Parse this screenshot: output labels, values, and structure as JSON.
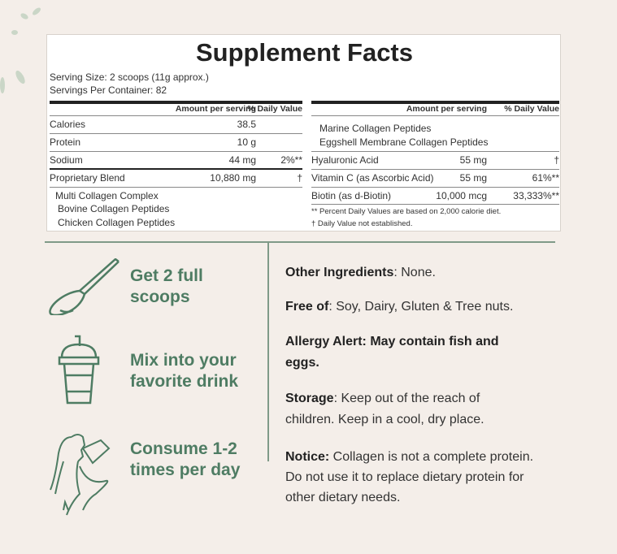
{
  "title": "Supplement Facts",
  "serving_size": "Serving Size: 2 scoops (11g approx.)",
  "servings_per_container": "Servings Per Container: 82",
  "left_table": {
    "headers": [
      "Amount per serving",
      "% Daily Value"
    ],
    "rows": [
      {
        "name": "Calories",
        "amount": "38.5",
        "dv": ""
      },
      {
        "name": "Protein",
        "amount": "10 g",
        "dv": ""
      },
      {
        "name": "Sodium",
        "amount": "44 mg",
        "dv": "2%**"
      },
      {
        "name": "Proprietary Blend",
        "amount": "10,880 mg",
        "dv": "†"
      }
    ],
    "sub_items": [
      "Multi Collagen Complex",
      "Bovine Collagen Peptides",
      "Chicken Collagen Peptides"
    ]
  },
  "right_table": {
    "headers": [
      "Amount per serving",
      "% Daily Value"
    ],
    "sub_items": [
      "Marine Collagen Peptides",
      "Eggshell Membrane Collagen Peptides"
    ],
    "rows": [
      {
        "name": "Hyaluronic Acid",
        "amount": "55 mg",
        "dv": "†"
      },
      {
        "name": "Vitamin C (as Ascorbic Acid)",
        "amount": "55 mg",
        "dv": "61%**"
      },
      {
        "name": "Biotin (as d-Biotin)",
        "amount": "10,000 mcg",
        "dv": "33,333%**"
      }
    ],
    "footnotes": [
      "** Percent Daily Values are based on 2,000 calorie diet.",
      "† Daily Value not established."
    ]
  },
  "steps": [
    {
      "icon": "scoop-icon",
      "line1": "Get 2 full",
      "line2": "scoops"
    },
    {
      "icon": "drink-cup-icon",
      "line1": "Mix into your",
      "line2": "favorite drink"
    },
    {
      "icon": "woman-drinking-icon",
      "line1": "Consume 1-2",
      "line2": "times per day"
    }
  ],
  "info": {
    "other_label": "Other Ingredients",
    "other_text": ": None.",
    "free_label": "Free of",
    "free_text": ": Soy, Dairy, Gluten & Tree nuts.",
    "allergy_line1": "Allergy Alert: May contain fish and",
    "allergy_line2": "eggs.",
    "storage_label": "Storage",
    "storage_text": ": Keep out of the reach of",
    "storage_line2": "children. Keep in a cool, dry place.",
    "notice_label": "Notice:",
    "notice_text": " Collagen is not a complete protein.",
    "notice_line2": "Do not use it to replace dietary protein for",
    "notice_line3": "other dietary needs."
  },
  "colors": {
    "accent": "#4e7c63",
    "background": "#f4eee9"
  }
}
